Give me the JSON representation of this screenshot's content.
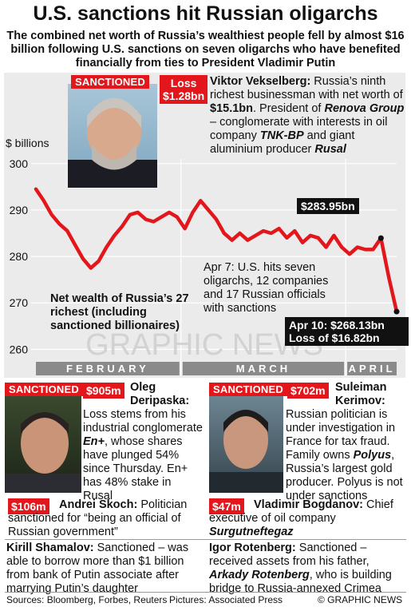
{
  "title": "U.S. sanctions hit Russian oligarchs",
  "subtitle": "The combined net worth of Russia’s wealthiest people fell by almost $16 billion following U.S. sanctions on seven oligarchs who have benefited financially from ties to President Vladimir Putin",
  "chart_data": {
    "type": "line",
    "title": "",
    "ylabel": "$ billions",
    "ylim": [
      258,
      301
    ],
    "yticks": [
      260,
      270,
      280,
      290,
      300
    ],
    "months": [
      "FEBRUARY",
      "MARCH",
      "APRIL"
    ],
    "series": [
      {
        "name": "",
        "x": [
          "Feb 1",
          "Feb 2",
          "Feb 5",
          "Feb 6",
          "Feb 7",
          "Feb 8",
          "Feb 9",
          "Feb 12",
          "Feb 13",
          "Feb 14",
          "Feb 15",
          "Feb 16",
          "Feb 20",
          "Feb 21",
          "Feb 22",
          "Feb 23",
          "Feb 26",
          "Feb 27",
          "Feb 28",
          "Mar 1",
          "Mar 2",
          "Mar 5",
          "Mar 6",
          "Mar 7",
          "Mar 8",
          "Mar 9",
          "Mar 12",
          "Mar 13",
          "Mar 14",
          "Mar 15",
          "Mar 16",
          "Mar 19",
          "Mar 20",
          "Mar 21",
          "Mar 22",
          "Mar 23",
          "Mar 26",
          "Mar 27",
          "Mar 28",
          "Mar 29",
          "Apr 2",
          "Apr 3",
          "Apr 4",
          "Apr 5",
          "Apr 6",
          "Apr 9",
          "Apr 10"
        ],
        "values": [
          294.5,
          292.0,
          289.0,
          287.0,
          285.5,
          282.5,
          279.5,
          277.5,
          279.0,
          282.0,
          284.5,
          286.5,
          289.0,
          289.5,
          288.0,
          287.5,
          288.5,
          289.5,
          288.5,
          286.0,
          289.5,
          292.0,
          290.0,
          288.0,
          285.0,
          283.5,
          285.0,
          283.5,
          284.5,
          285.5,
          285.0,
          286.0,
          284.0,
          285.5,
          283.0,
          284.5,
          284.0,
          282.0,
          284.5,
          282.0,
          280.5,
          282.0,
          281.5,
          281.5,
          283.95,
          275.5,
          268.13
        ]
      }
    ],
    "annotations": [
      {
        "label": "$283.95bn",
        "x": "Apr 6",
        "y": 283.95
      },
      {
        "label": "Apr 7: U.S. hits seven oligarchs, 12 companies and 17 Russian officials with sanctions",
        "x": "Apr 7"
      },
      {
        "label": "Apr 10: $268.13bn Loss of $16.82bn",
        "x": "Apr 10",
        "y": 268.13
      }
    ],
    "note": "Net wealth of Russia’s 27 richest (including sanctioned billionaires)"
  },
  "watermark": "GRAPHIC NEWS",
  "vekselberg": {
    "badge": "SANCTIONED",
    "loss_label": "Loss",
    "loss_value": "$1.28bn",
    "name": "Viktor Vekselberg:",
    "text1": " Russia’s ninth richest businessman with net worth of ",
    "worth": "$15.1bn",
    "text2": ". President of ",
    "company1": "Renova Group",
    "text3": " – conglomerate with interests in oil company ",
    "company2": "TNK-BP",
    "text4": " and giant aluminium producer ",
    "company3": "Rusal"
  },
  "deripaska": {
    "badge": "SANCTIONED",
    "loss": "$905m",
    "name": "Oleg Deripaska:",
    "text1": "Loss stems from his industrial conglomerate ",
    "company": "En+",
    "text2": ", whose shares have plunged 54% since Thursday. En+ has 48% stake in Rusal"
  },
  "kerimov": {
    "badge": "SANCTIONED",
    "loss": "$702m",
    "name": "Suleiman Kerimov:",
    "text1": "Russian politician is under investigation in France for tax fraud. Family owns ",
    "company": "Polyus",
    "text2": ", Russia’s largest gold producer. Polyus is not under sanctions"
  },
  "skoch": {
    "loss": "$106m",
    "name": "Andrei Skoch:",
    "text": " Politician sanctioned for “being an official of Russian government”"
  },
  "bogdanov": {
    "loss": "$47m",
    "name": "Vladimir Bogdanov:",
    "text": " Chief executive of oil company ",
    "company": "Surgutneftegaz"
  },
  "shamalov": {
    "name": "Kirill Shamalov:",
    "text": " Sanctioned – was able to borrow more than $1 billion from bank of Putin associate after marrying Putin’s daughter"
  },
  "rotenberg": {
    "name": "Igor Rotenberg:",
    "text1": " Sanctioned – received assets from his father, ",
    "father": "Arkady Rotenberg",
    "text2": ", who is building bridge to Russia-annexed Crimea"
  },
  "footer": {
    "sources": "Sources: Bloomberg, Forbes, Reuters",
    "pictures": "Pictures: Associated Press",
    "credit": "© GRAPHIC NEWS"
  },
  "colors": {
    "line": "#e3161b",
    "badge": "#e3161b",
    "panel": "#ebebeb",
    "monthbar": "#8a8a8a"
  }
}
